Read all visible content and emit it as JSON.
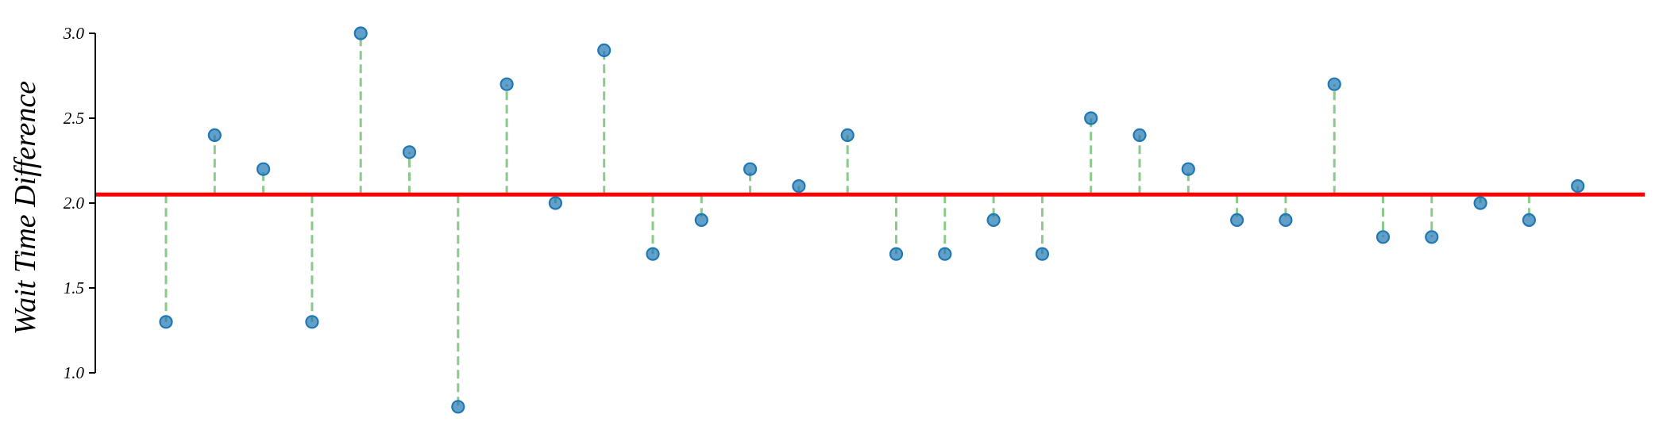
{
  "chart_data": {
    "type": "scatter",
    "title": "",
    "xlabel": "",
    "ylabel": "Wait Time Difference",
    "ylim": [
      1.0,
      3.0
    ],
    "y_ticks": [
      {
        "value": 1.0,
        "label": "1.0"
      },
      {
        "value": 1.5,
        "label": "1.5"
      },
      {
        "value": 2.0,
        "label": "2.0"
      },
      {
        "value": 2.5,
        "label": "2.5"
      },
      {
        "value": 3.0,
        "label": "3.0"
      }
    ],
    "reference_line": {
      "value": 2.05
    },
    "values": [
      1.3,
      2.4,
      2.2,
      1.3,
      3.0,
      2.3,
      0.8,
      2.7,
      2.0,
      2.9,
      1.7,
      1.9,
      2.2,
      2.1,
      2.4,
      1.7,
      1.7,
      1.9,
      1.7,
      2.5,
      2.4,
      2.2,
      1.9,
      1.9,
      2.7,
      1.8,
      1.8,
      2.0,
      1.9,
      2.1
    ],
    "grid": false,
    "legend": "none",
    "colors": {
      "point": "#1f77b4",
      "stem": "#2ca02c",
      "reference_line": "#ff0000",
      "axis": "#000000"
    }
  }
}
